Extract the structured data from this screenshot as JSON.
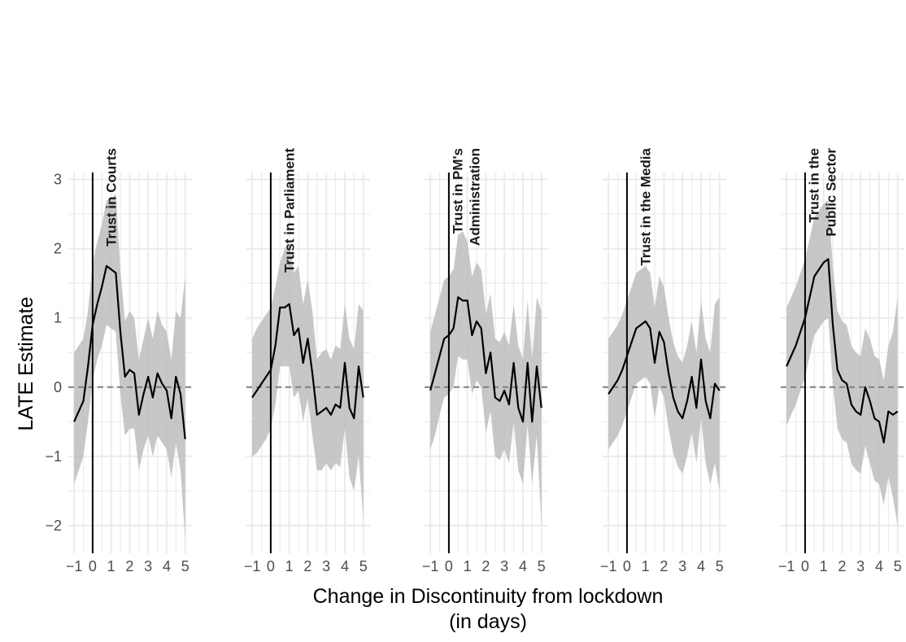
{
  "chart_data": {
    "type": "line",
    "xlabel": "Change in Discontinuity from lockdown",
    "xlabel_line2": "(in days)",
    "ylabel": "LATE Estimate",
    "ylim": [
      -2.4,
      3.1
    ],
    "xlim": [
      -1.05,
      5.1
    ],
    "y_ticks": [
      -2,
      -1,
      0,
      1,
      2,
      3
    ],
    "y_tick_labels": [
      "−2",
      "−1",
      "0",
      "1",
      "2",
      "3"
    ],
    "x_ticks": [
      -1,
      0,
      1,
      2,
      3,
      4,
      5
    ],
    "x_tick_labels": [
      "−1",
      "0",
      "1",
      "2",
      "3",
      "4",
      "5"
    ],
    "vertical_line_x": 0,
    "horizontal_dashed_line_y": 0,
    "ribbon_color": "#bdbdbd",
    "line_color": "#000000",
    "grid": true,
    "facets": [
      {
        "title_lines": [
          "Trust in Courts"
        ],
        "x": [
          -1,
          -0.75,
          -0.5,
          -0.25,
          0,
          0.25,
          0.5,
          0.75,
          1,
          1.25,
          1.5,
          1.75,
          2,
          2.25,
          2.5,
          2.75,
          3,
          3.25,
          3.5,
          3.75,
          4,
          4.25,
          4.5,
          4.75,
          5
        ],
        "y": [
          -0.5,
          -0.35,
          -0.2,
          0.3,
          0.9,
          1.2,
          1.45,
          1.75,
          1.7,
          1.65,
          0.8,
          0.15,
          0.25,
          0.2,
          -0.4,
          -0.1,
          0.15,
          -0.15,
          0.2,
          0.05,
          -0.05,
          -0.45,
          0.15,
          -0.1,
          -0.75
        ],
        "lower": [
          -1.4,
          -1.2,
          -1.0,
          -0.5,
          0.1,
          0.4,
          0.6,
          0.9,
          0.85,
          0.8,
          -0.1,
          -0.7,
          -0.6,
          -0.6,
          -1.2,
          -0.9,
          -0.7,
          -1.0,
          -0.7,
          -0.8,
          -0.9,
          -1.3,
          -0.8,
          -1.2,
          -2.2
        ],
        "upper": [
          0.5,
          0.6,
          0.7,
          1.1,
          1.8,
          2.1,
          2.35,
          2.7,
          2.7,
          2.8,
          1.7,
          0.95,
          1.1,
          1.0,
          0.4,
          0.7,
          1.0,
          0.7,
          1.1,
          0.9,
          0.8,
          0.4,
          1.1,
          1.0,
          1.6
        ]
      },
      {
        "title_lines": [
          "Trust in Parliament"
        ],
        "x": [
          -1,
          -0.75,
          -0.5,
          -0.25,
          0,
          0.25,
          0.5,
          0.75,
          1,
          1.25,
          1.5,
          1.75,
          2,
          2.25,
          2.5,
          2.75,
          3,
          3.25,
          3.5,
          3.75,
          4,
          4.25,
          4.5,
          4.75,
          5
        ],
        "y": [
          -0.15,
          -0.05,
          0.05,
          0.15,
          0.25,
          0.6,
          1.15,
          1.15,
          1.2,
          0.75,
          0.85,
          0.35,
          0.7,
          0.2,
          -0.4,
          -0.35,
          -0.3,
          -0.4,
          -0.25,
          -0.3,
          0.35,
          -0.3,
          -0.45,
          0.3,
          -0.15
        ],
        "lower": [
          -1.0,
          -0.95,
          -0.85,
          -0.75,
          -0.6,
          -0.25,
          0.3,
          0.3,
          0.3,
          -0.15,
          -0.05,
          -0.5,
          -0.15,
          -0.7,
          -1.2,
          -1.2,
          -1.1,
          -1.2,
          -1.1,
          -1.15,
          -0.6,
          -1.3,
          -1.5,
          -1.0,
          -1.9
        ],
        "upper": [
          0.7,
          0.85,
          0.95,
          1.05,
          1.15,
          1.45,
          1.8,
          2.0,
          2.1,
          1.65,
          1.75,
          1.2,
          1.55,
          1.1,
          0.4,
          0.5,
          0.55,
          0.4,
          0.6,
          0.55,
          1.2,
          0.7,
          0.55,
          1.2,
          1.1
        ]
      },
      {
        "title_lines": [
          "Trust in PM's",
          "Administration"
        ],
        "x": [
          -1,
          -0.75,
          -0.5,
          -0.25,
          0,
          0.25,
          0.5,
          0.75,
          1,
          1.25,
          1.5,
          1.75,
          2,
          2.25,
          2.5,
          2.75,
          3,
          3.25,
          3.5,
          3.75,
          4,
          4.25,
          4.5,
          4.75,
          5
        ],
        "y": [
          -0.05,
          0.2,
          0.45,
          0.7,
          0.75,
          0.85,
          1.3,
          1.25,
          1.25,
          0.75,
          0.95,
          0.85,
          0.2,
          0.5,
          -0.15,
          -0.2,
          -0.05,
          -0.25,
          0.35,
          -0.3,
          -0.5,
          0.35,
          -0.5,
          0.3,
          -0.3
        ],
        "lower": [
          -0.9,
          -0.7,
          -0.4,
          -0.15,
          -0.1,
          0.0,
          0.45,
          0.4,
          0.4,
          -0.1,
          0.1,
          0.0,
          -0.65,
          -0.35,
          -1.0,
          -1.05,
          -0.9,
          -1.1,
          -0.5,
          -1.2,
          -1.4,
          -0.55,
          -1.4,
          -0.7,
          -2.0
        ],
        "upper": [
          0.8,
          1.05,
          1.3,
          1.55,
          1.6,
          1.7,
          2.2,
          2.25,
          2.1,
          1.6,
          1.8,
          1.7,
          1.05,
          1.35,
          0.7,
          0.65,
          0.8,
          0.6,
          1.2,
          0.6,
          0.4,
          1.25,
          0.4,
          1.3,
          1.1
        ]
      },
      {
        "title_lines": [
          "Trust in the Media"
        ],
        "x": [
          -1,
          -0.75,
          -0.5,
          -0.25,
          0,
          0.25,
          0.5,
          0.75,
          1,
          1.25,
          1.5,
          1.75,
          2,
          2.25,
          2.5,
          2.75,
          3,
          3.25,
          3.5,
          3.75,
          4,
          4.25,
          4.5,
          4.75,
          5
        ],
        "y": [
          -0.1,
          0.0,
          0.1,
          0.25,
          0.45,
          0.65,
          0.85,
          0.9,
          0.95,
          0.85,
          0.35,
          0.8,
          0.65,
          0.2,
          -0.15,
          -0.35,
          -0.45,
          -0.2,
          0.15,
          -0.3,
          0.4,
          -0.2,
          -0.45,
          0.05,
          -0.05
        ],
        "lower": [
          -0.9,
          -0.8,
          -0.7,
          -0.55,
          -0.35,
          -0.15,
          0.05,
          0.1,
          0.15,
          0.05,
          -0.45,
          0.0,
          -0.15,
          -0.6,
          -0.95,
          -1.15,
          -1.25,
          -1.0,
          -0.65,
          -1.1,
          -0.45,
          -1.1,
          -1.4,
          -1.1,
          -1.5
        ],
        "upper": [
          0.7,
          0.8,
          0.9,
          1.05,
          1.25,
          1.45,
          1.65,
          1.7,
          1.75,
          1.65,
          1.15,
          1.6,
          1.45,
          1.0,
          0.65,
          0.45,
          0.35,
          0.6,
          0.95,
          0.5,
          1.25,
          0.7,
          0.5,
          1.2,
          1.3
        ]
      },
      {
        "title_lines": [
          "Trust in the",
          "Public Sector"
        ],
        "x": [
          -1,
          -0.75,
          -0.5,
          -0.25,
          0,
          0.25,
          0.5,
          0.75,
          1,
          1.25,
          1.5,
          1.75,
          2,
          2.25,
          2.5,
          2.75,
          3,
          3.25,
          3.5,
          3.75,
          4,
          4.25,
          4.5,
          4.75,
          5
        ],
        "y": [
          0.3,
          0.45,
          0.6,
          0.8,
          1.0,
          1.3,
          1.6,
          1.7,
          1.8,
          1.85,
          0.9,
          0.25,
          0.1,
          0.05,
          -0.25,
          -0.35,
          -0.4,
          0.0,
          -0.2,
          -0.45,
          -0.5,
          -0.8,
          -0.35,
          -0.4,
          -0.35
        ],
        "lower": [
          -0.55,
          -0.4,
          -0.25,
          -0.05,
          0.15,
          0.45,
          0.75,
          0.85,
          0.95,
          1.0,
          0.05,
          -0.6,
          -0.75,
          -0.8,
          -1.1,
          -1.2,
          -1.25,
          -0.85,
          -1.1,
          -1.35,
          -1.4,
          -1.7,
          -1.3,
          -1.6,
          -2.0
        ],
        "upper": [
          1.15,
          1.3,
          1.45,
          1.65,
          1.85,
          2.15,
          2.45,
          2.55,
          2.65,
          2.7,
          1.75,
          1.1,
          0.95,
          0.9,
          0.6,
          0.5,
          0.45,
          0.85,
          0.7,
          0.45,
          0.4,
          0.1,
          0.6,
          0.8,
          1.3
        ]
      }
    ]
  }
}
